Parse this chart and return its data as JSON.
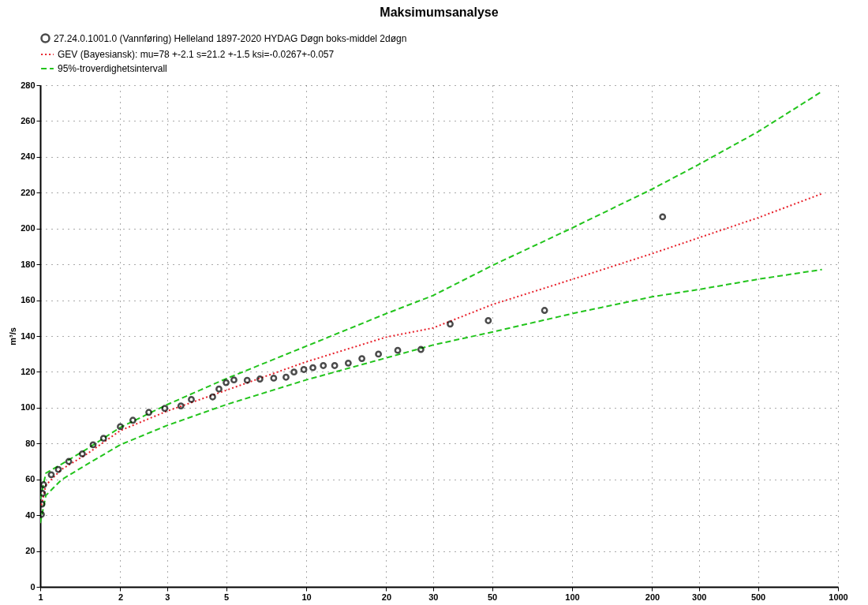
{
  "chart_data": {
    "type": "scatter",
    "title": "Maksimumsanalyse",
    "ylabel": "m³/s",
    "log": "x",
    "xlim": [
      1,
      1000
    ],
    "xticks": [
      1,
      2,
      3,
      5,
      10,
      20,
      30,
      50,
      100,
      200,
      300,
      500,
      1000
    ],
    "ylim": [
      0,
      280
    ],
    "yticks": [
      0,
      20,
      40,
      60,
      80,
      100,
      120,
      140,
      160,
      180,
      200,
      220,
      240,
      260,
      280
    ],
    "grid": true,
    "legend": "top left",
    "series": [
      {
        "name": "27.24.0.1001.0 (Vannføring) Helleland  1897-2020 HYDAG Døgn  boks-middel 2døgn",
        "marker": "circle",
        "color": "#000000",
        "x": [
          1.01,
          1.015,
          1.02,
          1.03,
          1.1,
          1.17,
          1.28,
          1.44,
          1.58,
          1.73,
          2.0,
          2.23,
          2.56,
          2.94,
          3.38,
          3.7,
          4.45,
          4.7,
          5.0,
          5.35,
          6.0,
          6.7,
          7.55,
          8.4,
          9.0,
          9.8,
          10.6,
          11.6,
          12.8,
          14.4,
          16.2,
          18.7,
          22.1,
          27.0,
          34.8,
          48.4,
          78.8,
          219
        ],
        "values": [
          40.4,
          46.2,
          52.2,
          57,
          62.6,
          65.5,
          70,
          74.2,
          79.3,
          82.9,
          89.4,
          93,
          97.4,
          99.6,
          101,
          104.6,
          106,
          110.4,
          114,
          115.5,
          115.3,
          116,
          116.5,
          117,
          119.9,
          121.3,
          122.3,
          123.5,
          123.5,
          124.9,
          127.4,
          129.9,
          132,
          132.5,
          146.7,
          148.6,
          154.3,
          206.5
        ]
      },
      {
        "name": "GEV (Bayesiansk): mu=78     +-2.1     s=21.2    +-1.5     ksi=-0.0267+-0.057",
        "type": "line",
        "line_style": "dotted",
        "color": "#e8202a",
        "x": [
          1.01,
          1.05,
          1.2,
          1.5,
          2,
          3,
          5,
          10,
          20,
          30,
          50,
          100,
          200,
          500,
          869
        ],
        "values": [
          45.6,
          56.8,
          65.5,
          74.2,
          87.2,
          98.1,
          109.7,
          125.6,
          139.4,
          144.5,
          157.5,
          171.6,
          186,
          206,
          219.4
        ]
      },
      {
        "name": "95%-troverdighetsintervall",
        "type": "line",
        "line_style": "dashed",
        "color": "#22c41c",
        "x": [
          1.0,
          1.05,
          1.2,
          1.5,
          2,
          3,
          5,
          10,
          20,
          30,
          50,
          100,
          200,
          300,
          500,
          870
        ],
        "values": [
          49,
          63.5,
          68.4,
          77,
          89,
          101.7,
          116.2,
          134.3,
          152.5,
          162.6,
          179.3,
          200.3,
          222,
          235.8,
          254,
          276.5
        ]
      },
      {
        "type": "line",
        "line_style": "dashed",
        "color": "#22c41c",
        "x": [
          1.0,
          1.05,
          1.2,
          1.5,
          2,
          3,
          5,
          10,
          20,
          30,
          50,
          100,
          200,
          300,
          500,
          870
        ],
        "values": [
          35.6,
          51,
          59.7,
          68.4,
          79.3,
          90.1,
          101.7,
          115.5,
          127.8,
          135,
          142.2,
          152.5,
          161.9,
          166,
          171.7,
          177.1
        ]
      }
    ]
  }
}
